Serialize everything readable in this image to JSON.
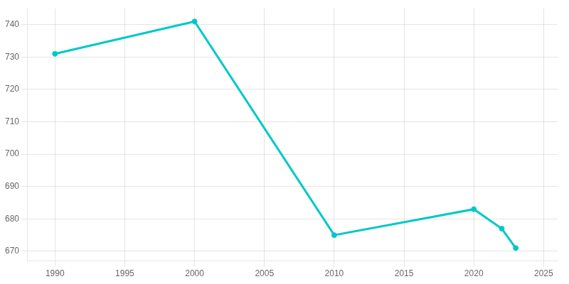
{
  "chart_data": {
    "type": "line",
    "x": [
      1990,
      2000,
      2010,
      2020,
      2022,
      2023
    ],
    "values": [
      731,
      741,
      675,
      683,
      677,
      671
    ],
    "color": "#00C8C8",
    "marker": "circle",
    "xlim": [
      1988,
      2026
    ],
    "ylim": [
      667,
      745
    ],
    "xticks": [
      1990,
      1995,
      2000,
      2005,
      2010,
      2015,
      2020,
      2025
    ],
    "yticks": [
      670,
      680,
      690,
      700,
      710,
      720,
      730,
      740
    ],
    "grid": true
  }
}
